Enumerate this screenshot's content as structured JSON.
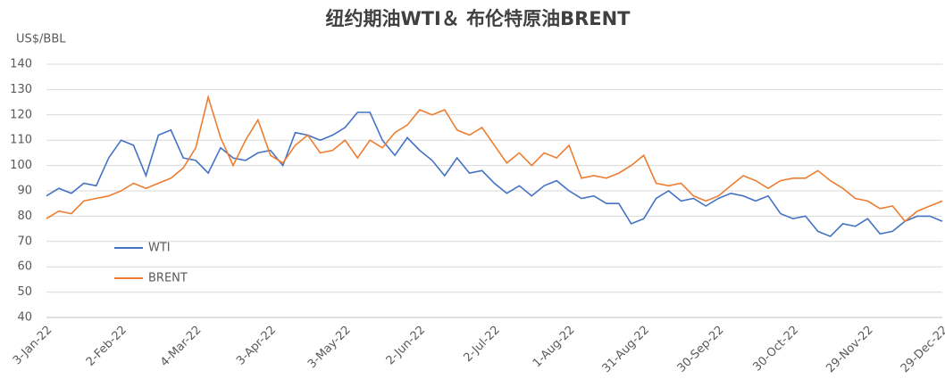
{
  "chart_data": {
    "type": "line",
    "title": "纽约期油WTI＆ 布伦特原油BRENT",
    "y_label": "US$/BBL",
    "categories": [
      "3-Jan-22",
      null,
      null,
      null,
      null,
      null,
      "2-Feb-22",
      null,
      null,
      null,
      null,
      null,
      "4-Mar-22",
      null,
      null,
      null,
      null,
      null,
      "3-Apr-22",
      null,
      null,
      null,
      null,
      null,
      "3-May-22",
      null,
      null,
      null,
      null,
      null,
      "2-Jun-22",
      null,
      null,
      null,
      null,
      null,
      "2-Jul-22",
      null,
      null,
      null,
      null,
      null,
      "1-Aug-22",
      null,
      null,
      null,
      null,
      null,
      "31-Aug-22",
      null,
      null,
      null,
      null,
      null,
      "30-Sep-22",
      null,
      null,
      null,
      null,
      null,
      "30-Oct-22",
      null,
      null,
      null,
      null,
      null,
      "29-Nov-22",
      null,
      null,
      null,
      null,
      null,
      "29-Dec-22"
    ],
    "series": [
      {
        "name": "WTI",
        "color": "#4472c4",
        "values": [
          88,
          91,
          89,
          93,
          92,
          103,
          110,
          108,
          96,
          112,
          114,
          103,
          102,
          97,
          107,
          103,
          102,
          105,
          106,
          100,
          113,
          112,
          110,
          112,
          115,
          121,
          121,
          110,
          104,
          111,
          106,
          102,
          96,
          103,
          97,
          98,
          93,
          89,
          92,
          88,
          92,
          94,
          90,
          87,
          88,
          85,
          85,
          77,
          79,
          87,
          90,
          86,
          87,
          84,
          87,
          89,
          88,
          86,
          88,
          81,
          79,
          80,
          74,
          72,
          77,
          76,
          79,
          73,
          74,
          78,
          80,
          80,
          78
        ]
      },
      {
        "name": "BRENT",
        "color": "#ed7d31",
        "values": [
          79,
          82,
          81,
          86,
          87,
          88,
          90,
          93,
          91,
          93,
          95,
          99,
          107,
          127,
          111,
          100,
          110,
          118,
          104,
          101,
          108,
          112,
          105,
          106,
          110,
          103,
          110,
          107,
          113,
          116,
          122,
          120,
          122,
          114,
          112,
          115,
          108,
          101,
          105,
          100,
          105,
          103,
          108,
          95,
          96,
          95,
          97,
          100,
          104,
          93,
          92,
          93,
          88,
          86,
          88,
          92,
          96,
          94,
          91,
          94,
          95,
          95,
          98,
          94,
          91,
          87,
          86,
          83,
          84,
          78,
          82,
          84,
          86
        ]
      }
    ],
    "ylim": [
      40,
      140
    ],
    "yticks": [
      40,
      50,
      60,
      70,
      80,
      90,
      100,
      110,
      120,
      130,
      140
    ],
    "grid": true
  }
}
